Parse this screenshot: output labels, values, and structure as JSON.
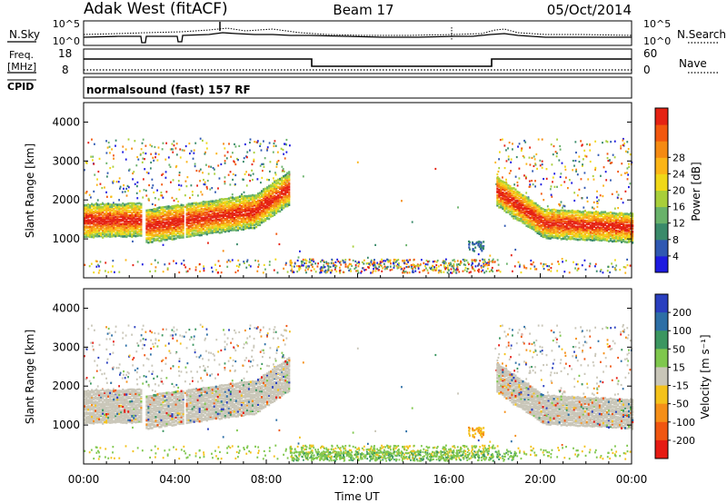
{
  "header": {
    "station": "Adak West (fitACF)",
    "beam": "Beam 17",
    "date": "05/Oct/2014"
  },
  "noise_panel": {
    "left_label": "N.Sky",
    "right_label": "N.Search",
    "ticks_left": [
      "10^5",
      "10^0"
    ],
    "ticks_right": [
      "10^5",
      "10^0"
    ]
  },
  "freq_panel": {
    "left_label_line1": "Freq.",
    "left_label_line2": "[MHz]",
    "right_label": "Nave",
    "ticks_left": [
      "18",
      "8"
    ],
    "ticks_right": [
      "60",
      "0"
    ]
  },
  "cpid": {
    "label": "CPID",
    "program": "normalsound (fast) 157 RF"
  },
  "chart_data": [
    {
      "type": "heatmap",
      "name": "power",
      "ylabel": "Slant Range [km]",
      "xlabel": "",
      "yticks": [
        "1000",
        "2000",
        "3000",
        "4000"
      ],
      "ylim": [
        0,
        4500
      ],
      "colorbar_label": "Power [dB]",
      "colorbar_ticks": [
        "4",
        "8",
        "12",
        "16",
        "20",
        "24",
        "28"
      ],
      "colorbar_colors": [
        "#1d1ae0",
        "#2f58b2",
        "#3a8a6a",
        "#69b26a",
        "#a8cf3a",
        "#f0d818",
        "#fbb517",
        "#f58a12",
        "#f2570e",
        "#e52213"
      ]
    },
    {
      "type": "heatmap",
      "name": "velocity",
      "ylabel": "Slant Range [km]",
      "xlabel": "Time UT",
      "yticks": [
        "1000",
        "2000",
        "3000",
        "4000"
      ],
      "ylim": [
        0,
        4500
      ],
      "colorbar_label": "Velocity [m s⁻¹]",
      "colorbar_ticks": [
        "200",
        "100",
        "50",
        "15",
        "-15",
        "-50",
        "-100",
        "-200"
      ],
      "colorbar_colors": [
        "#2a3fbf",
        "#2d6fa6",
        "#3b9660",
        "#7fc74d",
        "#c9c6b8",
        "#f4c21b",
        "#f58f18",
        "#f05611",
        "#e61b13"
      ]
    }
  ],
  "time_axis": {
    "label": "Time UT",
    "ticks": [
      "00:00",
      "04:00",
      "08:00",
      "12:00",
      "16:00",
      "20:00",
      "00:00"
    ]
  }
}
